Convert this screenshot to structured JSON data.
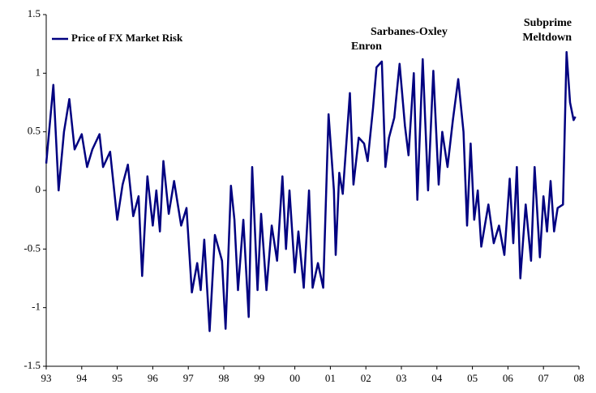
{
  "chart_data": {
    "type": "line",
    "series": [
      {
        "name": "Price of FX Market Risk",
        "color": "#000080",
        "x": [
          1993.0,
          1993.2,
          1993.35,
          1993.5,
          1993.65,
          1993.8,
          1994.0,
          1994.15,
          1994.3,
          1994.5,
          1994.6,
          1994.8,
          1995.0,
          1995.15,
          1995.3,
          1995.45,
          1995.6,
          1995.7,
          1995.85,
          1996.0,
          1996.1,
          1996.2,
          1996.3,
          1996.45,
          1996.6,
          1996.8,
          1996.95,
          1997.1,
          1997.25,
          1997.35,
          1997.45,
          1997.6,
          1997.75,
          1997.95,
          1998.05,
          1998.2,
          1998.3,
          1998.4,
          1998.55,
          1998.7,
          1998.8,
          1998.95,
          1999.05,
          1999.2,
          1999.35,
          1999.5,
          1999.65,
          1999.75,
          1999.85,
          2000.0,
          2000.1,
          2000.25,
          2000.4,
          2000.5,
          2000.65,
          2000.8,
          2000.95,
          2001.1,
          2001.15,
          2001.25,
          2001.35,
          2001.55,
          2001.65,
          2001.8,
          2001.95,
          2002.05,
          2002.2,
          2002.3,
          2002.45,
          2002.55,
          2002.65,
          2002.8,
          2002.95,
          2003.1,
          2003.2,
          2003.35,
          2003.45,
          2003.6,
          2003.75,
          2003.9,
          2004.05,
          2004.15,
          2004.3,
          2004.45,
          2004.6,
          2004.75,
          2004.85,
          2004.95,
          2005.05,
          2005.15,
          2005.25,
          2005.45,
          2005.6,
          2005.75,
          2005.9,
          2006.05,
          2006.15,
          2006.25,
          2006.35,
          2006.5,
          2006.65,
          2006.75,
          2006.9,
          2007.0,
          2007.1,
          2007.2,
          2007.3,
          2007.4,
          2007.55,
          2007.65,
          2007.75,
          2007.85,
          2007.9
        ],
        "values": [
          0.23,
          0.9,
          0.0,
          0.5,
          0.78,
          0.35,
          0.48,
          0.2,
          0.35,
          0.48,
          0.2,
          0.33,
          -0.25,
          0.05,
          0.22,
          -0.22,
          -0.05,
          -0.73,
          0.12,
          -0.3,
          0.0,
          -0.35,
          0.25,
          -0.2,
          0.08,
          -0.3,
          -0.15,
          -0.87,
          -0.62,
          -0.85,
          -0.42,
          -1.2,
          -0.38,
          -0.6,
          -1.18,
          0.04,
          -0.25,
          -0.85,
          -0.25,
          -1.08,
          0.2,
          -0.85,
          -0.2,
          -0.85,
          -0.3,
          -0.6,
          0.12,
          -0.5,
          0.0,
          -0.7,
          -0.35,
          -0.83,
          0.0,
          -0.83,
          -0.62,
          -0.83,
          0.65,
          0.0,
          -0.55,
          0.15,
          -0.03,
          0.83,
          0.05,
          0.45,
          0.4,
          0.25,
          0.7,
          1.05,
          1.1,
          0.2,
          0.45,
          0.62,
          1.08,
          0.55,
          0.3,
          1.0,
          -0.08,
          1.12,
          0.0,
          1.02,
          0.05,
          0.5,
          0.2,
          0.6,
          0.95,
          0.5,
          -0.3,
          0.4,
          -0.25,
          0.0,
          -0.48,
          -0.12,
          -0.45,
          -0.3,
          -0.55,
          0.1,
          -0.45,
          0.2,
          -0.75,
          -0.12,
          -0.6,
          0.2,
          -0.57,
          -0.05,
          -0.35,
          0.08,
          -0.35,
          -0.15,
          -0.12,
          1.18,
          0.75,
          0.6,
          0.63
        ]
      }
    ],
    "xlim": [
      1993,
      2008
    ],
    "xticks": [
      {
        "value": 1993,
        "label": "93"
      },
      {
        "value": 1994,
        "label": "94"
      },
      {
        "value": 1995,
        "label": "95"
      },
      {
        "value": 1996,
        "label": "96"
      },
      {
        "value": 1997,
        "label": "97"
      },
      {
        "value": 1998,
        "label": "98"
      },
      {
        "value": 1999,
        "label": "99"
      },
      {
        "value": 2000,
        "label": "00"
      },
      {
        "value": 2001,
        "label": "01"
      },
      {
        "value": 2002,
        "label": "02"
      },
      {
        "value": 2003,
        "label": "03"
      },
      {
        "value": 2004,
        "label": "04"
      },
      {
        "value": 2005,
        "label": "05"
      },
      {
        "value": 2006,
        "label": "06"
      },
      {
        "value": 2007,
        "label": "07"
      },
      {
        "value": 2008,
        "label": "08"
      }
    ],
    "ylim": [
      -1.5,
      1.5
    ],
    "yticks": [
      -1.5,
      -1,
      -0.5,
      0,
      0.5,
      1,
      1.5
    ],
    "annotations": [
      "Enron",
      "Sarbanes-Oxley",
      [
        "Subprime",
        "Meltdown"
      ]
    ],
    "legend": "upper left"
  }
}
